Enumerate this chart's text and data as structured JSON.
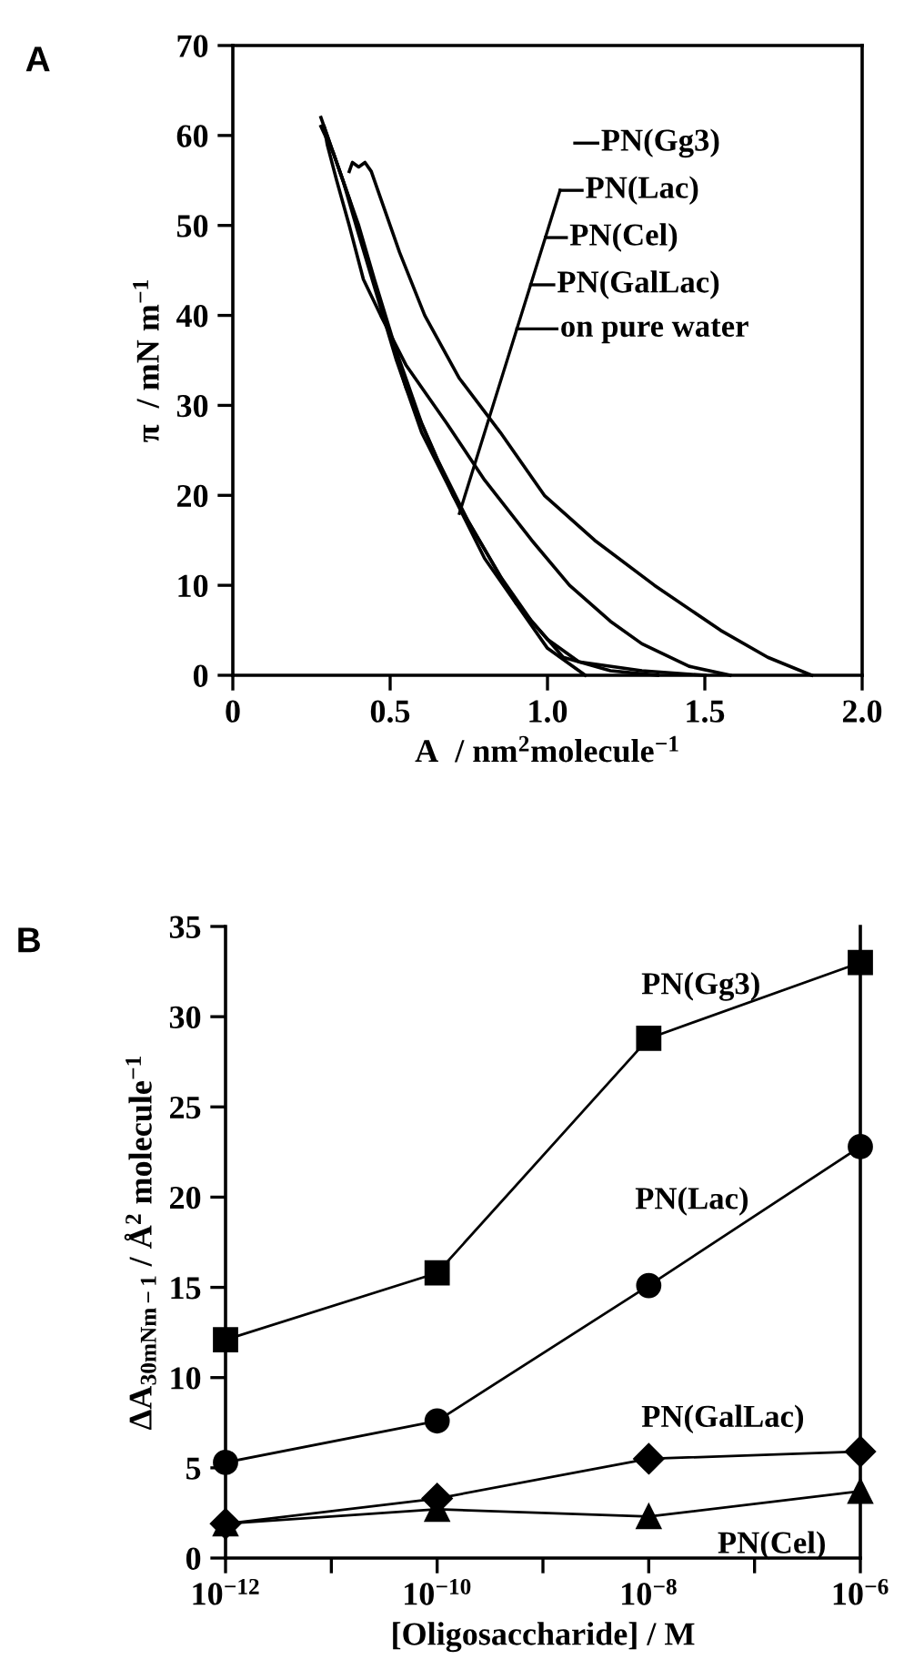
{
  "chart_data": [
    {
      "type": "line",
      "title": "A",
      "xlabel": "A  / nm$^{2}$molecule$^{−1}$",
      "ylabel": "π  / mN m$^{−1}$",
      "xlim": [
        0,
        2.0
      ],
      "ylim": [
        0,
        70
      ],
      "xticks": [
        {
          "value": 0,
          "label": "0"
        },
        0.5,
        {
          "value": 1.0,
          "label": "1.0"
        },
        1.5,
        {
          "value": 2.0,
          "label": "2.0"
        }
      ],
      "yticks": [
        0,
        10,
        20,
        30,
        40,
        50,
        60,
        70
      ],
      "grid": false,
      "legend": "top right",
      "series": [
        {
          "name": "PN(Gg3)",
          "color": "#000000",
          "x": [
            1.84,
            1.7,
            1.55,
            1.34,
            1.15,
            0.99,
            0.85,
            0.72,
            0.61,
            0.53,
            0.47,
            0.44,
            0.42,
            0.4,
            0.38,
            0.37
          ],
          "values": [
            0,
            2,
            5,
            10,
            15,
            20,
            27,
            33,
            40,
            47,
            53,
            56,
            57,
            56.5,
            57,
            56
          ]
        },
        {
          "name": "PN(Lac)",
          "color": "#000000",
          "x": [
            1.58,
            1.45,
            1.3,
            1.2,
            1.07,
            0.95,
            0.8,
            0.68,
            0.55,
            0.47,
            0.415,
            0.37,
            0.33,
            0.3,
            0.29
          ],
          "values": [
            0,
            1,
            3.5,
            6,
            10,
            15,
            21.7,
            28,
            34.5,
            40,
            44,
            50,
            55,
            59,
            61
          ]
        },
        {
          "name": "PN(Cel)",
          "color": "#000000",
          "x": [
            1.5,
            1.3,
            1.1,
            1.0,
            0.9,
            0.8,
            0.7,
            0.6,
            0.52,
            0.45,
            0.4,
            0.35,
            0.31,
            0.29
          ],
          "values": [
            0,
            0.5,
            1.5,
            4,
            8,
            14,
            20,
            28,
            36,
            44,
            50,
            55,
            59,
            61
          ]
        },
        {
          "name": "PN(GalLac)",
          "color": "#000000",
          "x": [
            1.35,
            1.2,
            1.05,
            0.95,
            0.85,
            0.75,
            0.65,
            0.55,
            0.48,
            0.42,
            0.37,
            0.32,
            0.28
          ],
          "values": [
            0,
            0.5,
            2,
            6,
            11,
            17,
            24,
            32,
            40,
            47,
            53,
            58,
            61
          ]
        },
        {
          "name": "on pure water",
          "color": "#000000",
          "x": [
            1.12,
            1.0,
            0.9,
            0.8,
            0.7,
            0.6,
            0.52,
            0.46,
            0.4,
            0.35,
            0.31,
            0.28
          ],
          "values": [
            0,
            3,
            8,
            13,
            20,
            27,
            35,
            42,
            49,
            55,
            59,
            62
          ]
        }
      ]
    },
    {
      "type": "line",
      "title": "B",
      "xlabel": "[Oligosaccharide] / M",
      "ylabel": "ΔA$_{30mNm−1}$ / Å$^{2}$ molecule$^{−1}$",
      "log": "x",
      "x": [
        1e-12,
        1e-10,
        1e-08,
        1e-06
      ],
      "xlim": [
        1e-12,
        1e-06
      ],
      "ylim": [
        0,
        35
      ],
      "xticks": [
        {
          "value": 1e-12,
          "label": "10$^{−12}$"
        },
        {
          "value": 1e-11,
          "label": null
        },
        {
          "value": 1e-10,
          "label": "10$^{−10}$"
        },
        {
          "value": 1e-09,
          "label": null
        },
        {
          "value": 1e-08,
          "label": "10$^{−8}$"
        },
        {
          "value": 1e-07,
          "label": null
        },
        {
          "value": 1e-06,
          "label": "10$^{−6}$"
        }
      ],
      "yticks": [
        0,
        5,
        10,
        15,
        20,
        25,
        30,
        35
      ],
      "grid": false,
      "legend": false,
      "series": [
        {
          "name": "PN(Gg3)",
          "color": "#000000",
          "marker": "square",
          "values": [
            12.1,
            15.8,
            28.8,
            33.0
          ]
        },
        {
          "name": "PN(Lac)",
          "color": "#000000",
          "marker": "circle",
          "values": [
            5.3,
            7.6,
            15.1,
            22.8
          ]
        },
        {
          "name": "PN(GalLac)",
          "color": "#000000",
          "marker": "diamond",
          "values": [
            1.9,
            3.3,
            5.5,
            5.9
          ]
        },
        {
          "name": "PN(Cel)",
          "color": "#000000",
          "marker": "triangle",
          "values": [
            1.9,
            2.7,
            2.3,
            3.7
          ]
        }
      ]
    }
  ]
}
